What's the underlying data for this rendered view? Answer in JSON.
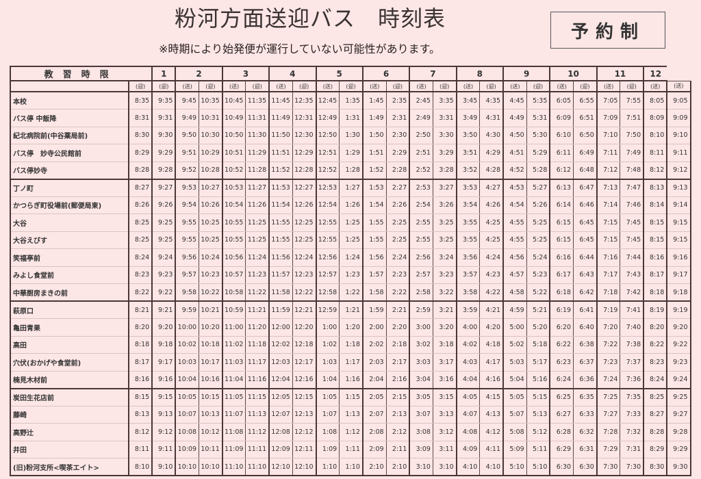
{
  "header": {
    "title": "粉河方面送迎バス　時刻表",
    "note": "※時期により始発便が運行していない可能性があります。",
    "badge": "予約制"
  },
  "table": {
    "corner_label": "教習時限",
    "periods": [
      "",
      "1",
      "2",
      "3",
      "4",
      "5",
      "6",
      "7",
      "8",
      "9",
      "10",
      "11",
      "12",
      ""
    ],
    "direction_labels": [
      "(迎)",
      "(迎)",
      "(送)",
      "(迎)",
      "(送)",
      "(迎)",
      "(送)",
      "(迎)",
      "(送)",
      "(迎)",
      "(送)",
      "(迎)",
      "(送)",
      "(迎)",
      "(送)",
      "(迎)",
      "(送)",
      "(迎)",
      "(送)",
      "(迎)",
      "(送)",
      "(迎)",
      "(送)",
      "(送)"
    ],
    "rows": [
      {
        "stop": "本校",
        "times": [
          "8:35",
          "9:35",
          "9:45",
          "10:35",
          "10:45",
          "11:35",
          "11:45",
          "12:35",
          "12:45",
          "1:35",
          "1:45",
          "2:35",
          "2:45",
          "3:35",
          "3:45",
          "4:35",
          "4:45",
          "5:35",
          "6:05",
          "6:55",
          "7:05",
          "7:55",
          "8:05",
          "9:05"
        ]
      },
      {
        "stop": "バス停 中飯降",
        "times": [
          "8:31",
          "9:31",
          "9:49",
          "10:31",
          "10:49",
          "11:31",
          "11:49",
          "12:31",
          "12:49",
          "1:31",
          "1:49",
          "2:31",
          "2:49",
          "3:31",
          "3:49",
          "4:31",
          "4:49",
          "5:31",
          "6:09",
          "6:51",
          "7:09",
          "7:51",
          "8:09",
          "9:09"
        ]
      },
      {
        "stop": "紀北病院前(中谷薬局前)",
        "times": [
          "8:30",
          "9:30",
          "9:50",
          "10:30",
          "10:50",
          "11:30",
          "11:50",
          "12:30",
          "12:50",
          "1:30",
          "1:50",
          "2:30",
          "2:50",
          "3:30",
          "3:50",
          "4:30",
          "4:50",
          "5:30",
          "6:10",
          "6:50",
          "7:10",
          "7:50",
          "8:10",
          "9:10"
        ]
      },
      {
        "stop": "バス停　妙寺公民館前",
        "times": [
          "8:29",
          "9:29",
          "9:51",
          "10:29",
          "10:51",
          "11:29",
          "11:51",
          "12:29",
          "12:51",
          "1:29",
          "1:51",
          "2:29",
          "2:51",
          "3:29",
          "3:51",
          "4:29",
          "4:51",
          "5:29",
          "6:11",
          "6:49",
          "7:11",
          "7:49",
          "8:11",
          "9:11"
        ]
      },
      {
        "stop": "バス停妙寺",
        "times": [
          "8:28",
          "9:28",
          "9:52",
          "10:28",
          "10:52",
          "11:28",
          "11:52",
          "12:28",
          "12:52",
          "1:28",
          "1:52",
          "2:28",
          "2:52",
          "3:28",
          "3:52",
          "4:28",
          "4:52",
          "5:28",
          "6:12",
          "6:48",
          "7:12",
          "7:48",
          "8:12",
          "9:12"
        ]
      },
      {
        "stop": "丁ノ町",
        "times": [
          "8:27",
          "9:27",
          "9:53",
          "10:27",
          "10:53",
          "11:27",
          "11:53",
          "12:27",
          "12:53",
          "1:27",
          "1:53",
          "2:27",
          "2:53",
          "3:27",
          "3:53",
          "4:27",
          "4:53",
          "5:27",
          "6:13",
          "6:47",
          "7:13",
          "7:47",
          "8:13",
          "9:13"
        ]
      },
      {
        "stop": "かつらぎ町役場前(郵便局東)",
        "times": [
          "8:26",
          "9:26",
          "9:54",
          "10:26",
          "10:54",
          "11:26",
          "11:54",
          "12:26",
          "12:54",
          "1:26",
          "1:54",
          "2:26",
          "2:54",
          "3:26",
          "3:54",
          "4:26",
          "4:54",
          "5:26",
          "6:14",
          "6:46",
          "7:14",
          "7:46",
          "8:14",
          "9:14"
        ]
      },
      {
        "stop": "大谷",
        "times": [
          "8:25",
          "9:25",
          "9:55",
          "10:25",
          "10:55",
          "11:25",
          "11:55",
          "12:25",
          "12:55",
          "1:25",
          "1:55",
          "2:25",
          "2:55",
          "3:25",
          "3:55",
          "4:25",
          "4:55",
          "5:25",
          "6:15",
          "6:45",
          "7:15",
          "7:45",
          "8:15",
          "9:15"
        ]
      },
      {
        "stop": "大谷えびす",
        "times": [
          "8:25",
          "9:25",
          "9:55",
          "10:25",
          "10:55",
          "11:25",
          "11:55",
          "12:25",
          "12:55",
          "1:25",
          "1:55",
          "2:25",
          "2:55",
          "3:25",
          "3:55",
          "4:25",
          "4:55",
          "5:25",
          "6:15",
          "6:45",
          "7:15",
          "7:45",
          "8:15",
          "9:15"
        ]
      },
      {
        "stop": "笑福亭前",
        "times": [
          "8:24",
          "9:24",
          "9:56",
          "10:24",
          "10:56",
          "11:24",
          "11:56",
          "12:24",
          "12:56",
          "1:24",
          "1:56",
          "2:24",
          "2:56",
          "3:24",
          "3:56",
          "4:24",
          "4:56",
          "5:24",
          "6:16",
          "6:44",
          "7:16",
          "7:44",
          "8:16",
          "9:16"
        ]
      },
      {
        "stop": "みよし食堂前",
        "times": [
          "8:23",
          "9:23",
          "9:57",
          "10:23",
          "10:57",
          "11:23",
          "11:57",
          "12:23",
          "12:57",
          "1:23",
          "1:57",
          "2:23",
          "2:57",
          "3:23",
          "3:57",
          "4:23",
          "4:57",
          "5:23",
          "6:17",
          "6:43",
          "7:17",
          "7:43",
          "8:17",
          "9:17"
        ]
      },
      {
        "stop": "中華厨房まきの前",
        "times": [
          "8:22",
          "9:22",
          "9:58",
          "10:22",
          "10:58",
          "11:22",
          "11:58",
          "12:22",
          "12:58",
          "1:22",
          "1:58",
          "2:22",
          "2:58",
          "3:22",
          "3:58",
          "4:22",
          "4:58",
          "5:22",
          "6:18",
          "6:42",
          "7:18",
          "7:42",
          "8:18",
          "9:18"
        ]
      },
      {
        "stop": "萩原口",
        "times": [
          "8:21",
          "9:21",
          "9:59",
          "10:21",
          "10:59",
          "11:21",
          "11:59",
          "12:21",
          "12:59",
          "1:21",
          "1:59",
          "2:21",
          "2:59",
          "3:21",
          "3:59",
          "4:21",
          "4:59",
          "5:21",
          "6:19",
          "6:41",
          "7:19",
          "7:41",
          "8:19",
          "9:19"
        ]
      },
      {
        "stop": "亀田青果",
        "times": [
          "8:20",
          "9:20",
          "10:00",
          "10:20",
          "11:00",
          "11:20",
          "12:00",
          "12:20",
          "1:00",
          "1:20",
          "2:00",
          "2:20",
          "3:00",
          "3:20",
          "4:00",
          "4:20",
          "5:00",
          "5:20",
          "6:20",
          "6:40",
          "7:20",
          "7:40",
          "8:20",
          "9:20"
        ]
      },
      {
        "stop": "高田",
        "times": [
          "8:18",
          "9:18",
          "10:02",
          "10:18",
          "11:02",
          "11:18",
          "12:02",
          "12:18",
          "1:02",
          "1:18",
          "2:02",
          "2:18",
          "3:02",
          "3:18",
          "4:02",
          "4:18",
          "5:02",
          "5:18",
          "6:22",
          "6:38",
          "7:22",
          "7:38",
          "8:22",
          "9:22"
        ]
      },
      {
        "stop": "穴伏(おかげや食堂前)",
        "times": [
          "8:17",
          "9:17",
          "10:03",
          "10:17",
          "11:03",
          "11:17",
          "12:03",
          "12:17",
          "1:03",
          "1:17",
          "2:03",
          "2:17",
          "3:03",
          "3:17",
          "4:03",
          "4:17",
          "5:03",
          "5:17",
          "6:23",
          "6:37",
          "7:23",
          "7:37",
          "8:23",
          "9:23"
        ]
      },
      {
        "stop": "楠見木材前",
        "times": [
          "8:16",
          "9:16",
          "10:04",
          "10:16",
          "11:04",
          "11:16",
          "12:04",
          "12:16",
          "1:04",
          "1:16",
          "2:04",
          "2:16",
          "3:04",
          "3:16",
          "4:04",
          "4:16",
          "5:04",
          "5:16",
          "6:24",
          "6:36",
          "7:24",
          "7:36",
          "8:24",
          "9:24"
        ]
      },
      {
        "stop": "炭田生花店前",
        "times": [
          "8:15",
          "9:15",
          "10:05",
          "10:15",
          "11:05",
          "11:15",
          "12:05",
          "12:15",
          "1:05",
          "1:15",
          "2:05",
          "2:15",
          "3:05",
          "3:15",
          "4:05",
          "4:15",
          "5:05",
          "5:15",
          "6:25",
          "6:35",
          "7:25",
          "7:35",
          "8:25",
          "9:25"
        ]
      },
      {
        "stop": "藤崎",
        "times": [
          "8:13",
          "9:13",
          "10:07",
          "10:13",
          "11:07",
          "11:13",
          "12:07",
          "12:13",
          "1:07",
          "1:13",
          "2:07",
          "2:13",
          "3:07",
          "3:13",
          "4:07",
          "4:13",
          "5:07",
          "5:13",
          "6:27",
          "6:33",
          "7:27",
          "7:33",
          "8:27",
          "9:27"
        ]
      },
      {
        "stop": "高野辻",
        "times": [
          "8:12",
          "9:12",
          "10:08",
          "10:12",
          "11:08",
          "11:12",
          "12:08",
          "12:12",
          "1:08",
          "1:12",
          "2:08",
          "2:12",
          "3:08",
          "3:12",
          "4:08",
          "4:12",
          "5:08",
          "5:12",
          "6:28",
          "6:32",
          "7:28",
          "7:32",
          "8:28",
          "9:28"
        ]
      },
      {
        "stop": "井田",
        "times": [
          "8:11",
          "9:11",
          "10:09",
          "10:11",
          "11:09",
          "11:11",
          "12:09",
          "12:11",
          "1:09",
          "1:11",
          "2:09",
          "2:11",
          "3:09",
          "3:11",
          "4:09",
          "4:11",
          "5:09",
          "5:11",
          "6:29",
          "6:31",
          "7:29",
          "7:31",
          "8:29",
          "9:29"
        ]
      },
      {
        "stop": "(旧)粉河支所<喫茶エイト>",
        "times": [
          "8:10",
          "9:10",
          "10:10",
          "10:10",
          "11:10",
          "11:10",
          "12:10",
          "12:10",
          "1:10",
          "1:10",
          "2:10",
          "2:10",
          "3:10",
          "3:10",
          "4:10",
          "4:10",
          "5:10",
          "5:10",
          "6:30",
          "6:30",
          "7:30",
          "7:30",
          "8:30",
          "9:30"
        ]
      }
    ]
  }
}
